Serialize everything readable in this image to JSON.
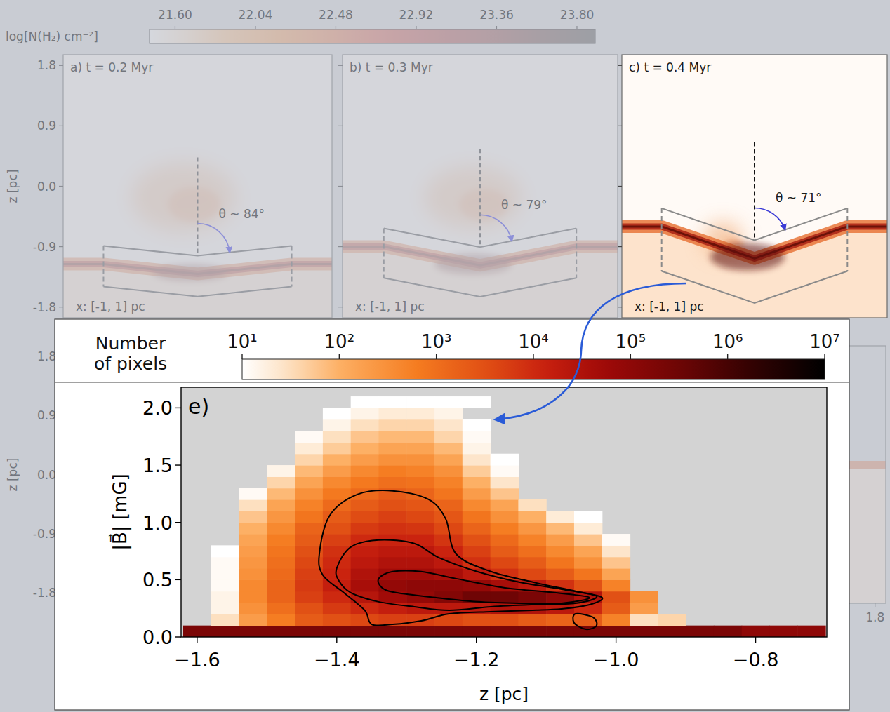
{
  "chart_data": [
    {
      "type": "image",
      "title": "a) t = 0.2 Myr",
      "xlabel": "x: [-1, 1] pc",
      "ylabel": "z [pc]",
      "ylim": [
        -1.96,
        1.96
      ],
      "yticks": [
        1.8,
        0.9,
        {
          "value": 0,
          "label": "0.0"
        },
        -0.9,
        -1.8
      ],
      "tick_labels": "y",
      "annotation": "θ ~ 84°",
      "angle": 84,
      "sheet_z": -1.16
    },
    {
      "type": "image",
      "title": "b) t = 0.3 Myr",
      "xlabel": "x: [-1, 1] pc",
      "ylim": [
        -1.96,
        1.96
      ],
      "yticks": [
        1.8,
        0.9,
        {
          "value": 0,
          "label": "0.0"
        },
        -0.9,
        -1.8
      ],
      "tick_labels": false,
      "annotation": "θ ~ 79°",
      "angle": 79,
      "sheet_z": -0.9
    },
    {
      "type": "image",
      "title": "c) t = 0.4 Myr",
      "xlabel": "x: [-1, 1] pc",
      "ylim": [
        -1.96,
        1.96
      ],
      "yticks": [
        1.8,
        0.9,
        {
          "value": 0,
          "label": "0.0"
        },
        -0.9,
        -1.8
      ],
      "tick_labels": false,
      "annotation": "θ ~ 71°",
      "angle": 71,
      "sheet_z": -0.6
    },
    {
      "type": "colorbar",
      "title": "log[N(H₂) cm⁻²]",
      "clim": [
        21.46,
        23.9
      ],
      "ticks": [
        {
          "value": 21.6,
          "label": "21.60"
        },
        22.04,
        22.48,
        22.92,
        23.36,
        {
          "value": 23.8,
          "label": "23.80"
        }
      ]
    },
    {
      "type": "heatmap",
      "title": "e)",
      "xlabel": "z [pc]",
      "ylabel": "|B⃗| [mG]",
      "xlim": [
        -1.623,
        -0.698
      ],
      "ylim": [
        0,
        2.18
      ],
      "xticks": [
        {
          "value": -1.6,
          "label": "−1.6"
        },
        {
          "value": -1.4,
          "label": "−1.4"
        },
        {
          "value": -1.2,
          "label": "−1.2"
        },
        {
          "value": -1.0,
          "label": "−1.0"
        },
        {
          "value": -0.8,
          "label": "−0.8"
        }
      ],
      "yticks": [
        {
          "value": 0,
          "label": "0.0"
        },
        0.5,
        {
          "value": 1,
          "label": "1.0"
        },
        1.5,
        {
          "value": 2,
          "label": "2.0"
        }
      ],
      "x_edges": [
        -1.62,
        -1.58,
        -1.54,
        -1.5,
        -1.46,
        -1.42,
        -1.38,
        -1.34,
        -1.3,
        -1.26,
        -1.22,
        -1.18,
        -1.14,
        -1.1,
        -1.06,
        -1.02,
        -0.98,
        -0.94,
        -0.9,
        -0.86,
        -0.82,
        -0.78,
        -0.74,
        -0.7
      ],
      "y_edges": [
        0,
        0.1,
        0.2,
        0.3,
        0.4,
        0.5,
        0.6,
        0.7,
        0.8,
        0.9,
        1.0,
        1.1,
        1.2,
        1.3,
        1.4,
        1.5,
        1.6,
        1.7,
        1.8,
        1.9,
        2.0,
        2.1
      ],
      "cells": [
        [
          200000,
          200000,
          200000,
          200000,
          200000,
          200000,
          200000,
          200000,
          200000,
          200000,
          200000,
          200000,
          200000,
          200000,
          200000,
          200000,
          200000,
          200000,
          200000,
          200000,
          100000,
          100000,
          100000
        ],
        [
          null,
          30,
          200,
          600,
          2000,
          3000,
          4000,
          5000,
          5000,
          4000,
          3000,
          3000,
          2000,
          1500,
          2000,
          500,
          30,
          40,
          null,
          null,
          null,
          null,
          null
        ],
        [
          null,
          15,
          300,
          1000,
          3000,
          6000,
          10000,
          15000,
          20000,
          20000,
          20000,
          30000,
          30000,
          20000,
          10000,
          2000,
          200,
          null,
          null,
          null,
          null,
          null,
          null
        ],
        [
          null,
          15,
          400,
          1500,
          5000,
          10000,
          25000,
          50000,
          80000,
          150000,
          300000,
          300000,
          200000,
          100000,
          30000,
          3000,
          300,
          null,
          null,
          null,
          null,
          null,
          null
        ],
        [
          null,
          12,
          400,
          1500,
          6000,
          15000,
          40000,
          80000,
          100000,
          100000,
          80000,
          40000,
          20000,
          8000,
          3000,
          500,
          null,
          null,
          null,
          null,
          null,
          null,
          null
        ],
        [
          null,
          12,
          300,
          1200,
          5000,
          12000,
          30000,
          50000,
          50000,
          40000,
          20000,
          8000,
          4000,
          2000,
          800,
          150,
          null,
          null,
          null,
          null,
          null,
          null,
          null
        ],
        [
          null,
          12,
          250,
          1000,
          4000,
          10000,
          20000,
          30000,
          30000,
          20000,
          8000,
          4000,
          2000,
          800,
          300,
          60,
          null,
          null,
          null,
          null,
          null,
          null,
          null
        ],
        [
          null,
          10,
          200,
          800,
          3000,
          8000,
          15000,
          20000,
          20000,
          12000,
          5000,
          2000,
          1000,
          400,
          150,
          25,
          null,
          null,
          null,
          null,
          null,
          null,
          null
        ],
        [
          null,
          null,
          150,
          600,
          2000,
          5000,
          10000,
          12000,
          12000,
          7000,
          3000,
          1200,
          500,
          200,
          60,
          12,
          null,
          null,
          null,
          null,
          null,
          null,
          null
        ],
        [
          null,
          null,
          100,
          400,
          1500,
          3000,
          6000,
          8000,
          7000,
          4000,
          1500,
          600,
          250,
          80,
          20,
          null,
          null,
          null,
          null,
          null,
          null,
          null,
          null
        ],
        [
          null,
          null,
          60,
          250,
          800,
          2000,
          3500,
          5000,
          4000,
          2500,
          800,
          300,
          100,
          20,
          10,
          null,
          null,
          null,
          null,
          null,
          null,
          null,
          null
        ],
        [
          null,
          null,
          30,
          150,
          500,
          1200,
          2000,
          3000,
          2500,
          1500,
          400,
          150,
          30,
          null,
          null,
          null,
          null,
          null,
          null,
          null,
          null,
          null,
          null
        ],
        [
          null,
          null,
          12,
          80,
          300,
          700,
          1200,
          2000,
          1500,
          800,
          200,
          60,
          null,
          null,
          null,
          null,
          null,
          null,
          null,
          null,
          null,
          null,
          null
        ],
        [
          null,
          null,
          null,
          40,
          150,
          400,
          700,
          1000,
          900,
          500,
          100,
          25,
          null,
          null,
          null,
          null,
          null,
          null,
          null,
          null,
          null,
          null,
          null
        ],
        [
          null,
          null,
          null,
          15,
          80,
          200,
          400,
          600,
          500,
          300,
          50,
          12,
          null,
          null,
          null,
          null,
          null,
          null,
          null,
          null,
          null,
          null,
          null
        ],
        [
          null,
          null,
          null,
          null,
          40,
          100,
          200,
          300,
          300,
          150,
          25,
          10,
          null,
          null,
          null,
          null,
          null,
          null,
          null,
          null,
          null,
          null,
          null
        ],
        [
          null,
          null,
          null,
          null,
          20,
          50,
          100,
          150,
          150,
          80,
          15,
          null,
          null,
          null,
          null,
          null,
          null,
          null,
          null,
          null,
          null,
          null,
          null
        ],
        [
          null,
          null,
          null,
          null,
          12,
          30,
          60,
          80,
          80,
          40,
          12,
          null,
          null,
          null,
          null,
          null,
          null,
          null,
          null,
          null,
          null,
          null,
          null
        ],
        [
          null,
          null,
          null,
          null,
          null,
          15,
          30,
          40,
          40,
          25,
          10,
          null,
          null,
          null,
          null,
          null,
          null,
          null,
          null,
          null,
          null,
          null,
          null
        ],
        [
          null,
          null,
          null,
          null,
          null,
          10,
          15,
          20,
          20,
          15,
          null,
          null,
          null,
          null,
          null,
          null,
          null,
          null,
          null,
          null,
          null,
          null,
          null
        ],
        [
          null,
          null,
          null,
          null,
          null,
          null,
          10,
          10,
          10,
          10,
          10,
          null,
          null,
          null,
          null,
          null,
          null,
          null,
          null,
          null,
          null,
          null,
          null
        ]
      ],
      "contours": [
        {
          "x": [
            -1.425,
            -1.41,
            -1.37,
            -1.32,
            -1.269,
            -1.244,
            -1.229,
            -1.179,
            -1.119,
            -1.058,
            -1.02,
            -1.038,
            -1.078,
            -1.119,
            -1.179,
            -1.239,
            -1.279,
            -1.32,
            -1.35,
            -1.36,
            -1.39,
            -1.42
          ],
          "y": [
            0.724,
            1.061,
            1.245,
            1.276,
            1.202,
            1.031,
            0.724,
            0.571,
            0.479,
            0.399,
            0.344,
            0.282,
            0.245,
            0.233,
            0.221,
            0.202,
            0.141,
            0.11,
            0.11,
            0.233,
            0.387,
            0.54
          ]
        },
        {
          "x": [
            -1.4,
            -1.38,
            -1.34,
            -1.289,
            -1.254,
            -1.199,
            -1.139,
            -1.078,
            -1.028,
            -1.058,
            -1.119,
            -1.179,
            -1.239,
            -1.289,
            -1.34,
            -1.38,
            -1.397
          ],
          "y": [
            0.601,
            0.785,
            0.847,
            0.816,
            0.693,
            0.571,
            0.479,
            0.417,
            0.356,
            0.294,
            0.282,
            0.264,
            0.233,
            0.264,
            0.307,
            0.387,
            0.491
          ]
        },
        {
          "x": [
            -1.34,
            -1.32,
            -1.279,
            -1.229,
            -1.159,
            -1.088,
            -1.038,
            -1.078,
            -1.139,
            -1.199,
            -1.259,
            -1.315,
            -1.335
          ],
          "y": [
            0.509,
            0.571,
            0.571,
            0.509,
            0.429,
            0.387,
            0.344,
            0.294,
            0.294,
            0.307,
            0.344,
            0.387,
            0.429
          ]
        },
        {
          "x": [
            -1.058,
            -1.033,
            -1.028,
            -1.043,
            -1.06
          ],
          "y": [
            0.202,
            0.172,
            0.098,
            0.067,
            0.123
          ]
        }
      ],
      "colorbar": {
        "title": "Number of pixels",
        "log": true,
        "clim": [
          10,
          10000000
        ],
        "ticks": [
          {
            "value": 10,
            "label": "10¹"
          },
          {
            "value": 100,
            "label": "10²"
          },
          {
            "value": 1000,
            "label": "10³"
          },
          {
            "value": 10000,
            "label": "10⁴"
          },
          {
            "value": 100000,
            "label": "10⁵"
          },
          {
            "value": 1000000,
            "label": "10⁶"
          },
          {
            "value": 10000000,
            "label": "10⁷"
          }
        ]
      }
    },
    {
      "type": "image",
      "ylabel": "z [pc]",
      "ylim": [
        -1.96,
        1.96
      ],
      "yticks": [
        1.8,
        0.9,
        {
          "value": 0,
          "label": "0.0"
        },
        -0.9,
        -1.8
      ],
      "tick_labels": "y"
    },
    {
      "type": "image",
      "xlim": [
        -1.96,
        1.96
      ],
      "xticks": [
        1.8
      ],
      "tick_labels": "x"
    }
  ]
}
